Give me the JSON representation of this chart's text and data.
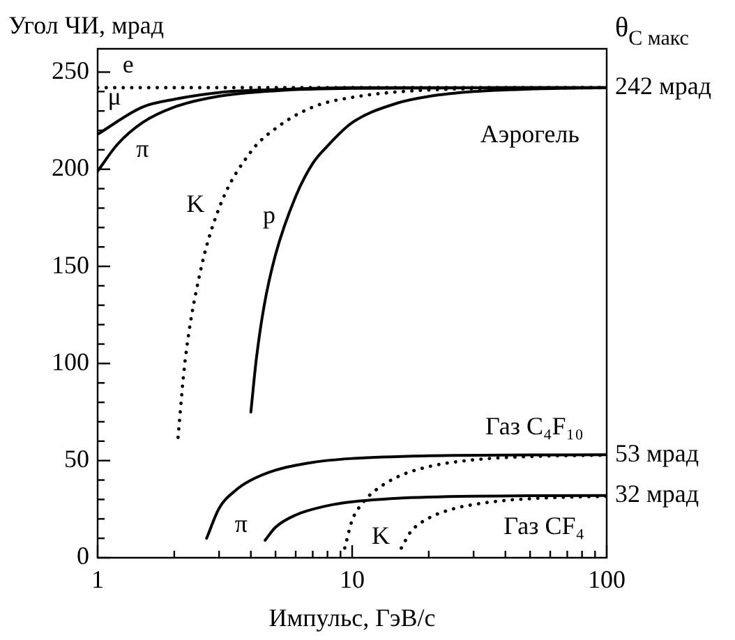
{
  "chart_data": {
    "type": "line",
    "ylabel": "Угол ЧИ, мрад",
    "xlabel": "Импульс, ГэВ/c",
    "y2label": "θ$_{C макс}$",
    "log": "x",
    "grid": false,
    "legend": false,
    "marker": "none",
    "xlim": [
      1,
      100
    ],
    "xticks": [
      1,
      {
        "value": 2,
        "label": null
      },
      {
        "value": 3,
        "label": null
      },
      {
        "value": 4,
        "label": null
      },
      {
        "value": 5,
        "label": null
      },
      {
        "value": 6,
        "label": null
      },
      {
        "value": 7,
        "label": null
      },
      {
        "value": 8,
        "label": null
      },
      {
        "value": 9,
        "label": null
      },
      10,
      {
        "value": 20,
        "label": null
      },
      {
        "value": 30,
        "label": null
      },
      {
        "value": 40,
        "label": null
      },
      {
        "value": 50,
        "label": null
      },
      {
        "value": 60,
        "label": null
      },
      {
        "value": 70,
        "label": null
      },
      {
        "value": 80,
        "label": null
      },
      {
        "value": 90,
        "label": null
      },
      100
    ],
    "ylim": [
      0,
      262
    ],
    "yticks": [
      0,
      {
        "value": 10,
        "label": null
      },
      {
        "value": 20,
        "label": null
      },
      {
        "value": 30,
        "label": null
      },
      {
        "value": 40,
        "label": null
      },
      50,
      {
        "value": 60,
        "label": null
      },
      {
        "value": 70,
        "label": null
      },
      {
        "value": 80,
        "label": null
      },
      {
        "value": 90,
        "label": null
      },
      100,
      {
        "value": 110,
        "label": null
      },
      {
        "value": 120,
        "label": null
      },
      {
        "value": 130,
        "label": null
      },
      {
        "value": 140,
        "label": null
      },
      150,
      {
        "value": 160,
        "label": null
      },
      {
        "value": 170,
        "label": null
      },
      {
        "value": 180,
        "label": null
      },
      {
        "value": 190,
        "label": null
      },
      200,
      {
        "value": 210,
        "label": null
      },
      {
        "value": 220,
        "label": null
      },
      {
        "value": 230,
        "label": null
      },
      {
        "value": 240,
        "label": null
      },
      250
    ],
    "y2lim": [
      0,
      262
    ],
    "y2ticks": [
      {
        "value": 242,
        "label": "242 мрад"
      },
      {
        "value": 53,
        "label": "53 мрад"
      },
      {
        "value": 32,
        "label": "32 мрад"
      }
    ],
    "series": [
      {
        "color": "#000000",
        "line_style": "dotted",
        "x": [
          1,
          100
        ],
        "values": [
          242,
          242
        ]
      },
      {
        "color": "#000000",
        "line_style": "solid",
        "x": [
          1,
          1.5,
          2,
          3,
          5,
          10,
          100
        ],
        "values": [
          218,
          232,
          236,
          239.5,
          241,
          242,
          242
        ]
      },
      {
        "color": "#000000",
        "line_style": "solid",
        "x": [
          1,
          1.2,
          1.5,
          2,
          3,
          5,
          10,
          100
        ],
        "values": [
          199,
          213,
          224,
          232,
          237.6,
          240.4,
          241.6,
          242
        ]
      },
      {
        "color": "#000000",
        "line_style": "dotted",
        "x": [
          2.07,
          2.2,
          2.5,
          3,
          4,
          5,
          7,
          10,
          20,
          50,
          100
        ],
        "values": [
          62,
          100,
          144,
          180,
          209,
          221,
          232,
          237,
          240.8,
          241.7,
          242
        ]
      },
      {
        "color": "#000000",
        "line_style": "solid",
        "x": [
          4,
          4.2,
          4.5,
          5,
          6,
          7,
          8,
          10,
          15,
          20,
          30,
          50,
          100
        ],
        "values": [
          75,
          102,
          129,
          156,
          186,
          203,
          212,
          224,
          234,
          237.5,
          240,
          241.3,
          242
        ]
      },
      {
        "color": "#000000",
        "line_style": "solid",
        "x": [
          2.68,
          3,
          3.5,
          4,
          5,
          7,
          10,
          20,
          50,
          100
        ],
        "values": [
          10,
          25.4,
          34.9,
          39.9,
          45.1,
          49.1,
          51.1,
          52.5,
          52.9,
          53
        ]
      },
      {
        "color": "#000000",
        "line_style": "dotted",
        "x": [
          9.35,
          10,
          11,
          12,
          15,
          20,
          30,
          50,
          100
        ],
        "values": [
          5,
          19.3,
          28.2,
          33.4,
          41.5,
          46.9,
          50.4,
          52.1,
          52.8
        ]
      },
      {
        "color": "#000000",
        "line_style": "solid",
        "x": [
          4.55,
          5,
          6,
          8,
          10,
          15,
          20,
          50,
          100
        ],
        "values": [
          9,
          15.7,
          22,
          26.8,
          28.8,
          30.6,
          31.2,
          31.9,
          32
        ]
      },
      {
        "color": "#000000",
        "line_style": "dotted",
        "x": [
          15.6,
          17,
          20,
          25,
          30,
          40,
          60,
          100
        ],
        "values": [
          5,
          13.4,
          20.4,
          25.2,
          27.4,
          29.5,
          30.9,
          31.6
        ]
      }
    ],
    "annotations": [
      "e",
      "μ",
      "π",
      "K",
      "p",
      "Аэрогель",
      "Газ C₄F₁₀",
      "π",
      "K",
      "Газ CF₄"
    ]
  }
}
